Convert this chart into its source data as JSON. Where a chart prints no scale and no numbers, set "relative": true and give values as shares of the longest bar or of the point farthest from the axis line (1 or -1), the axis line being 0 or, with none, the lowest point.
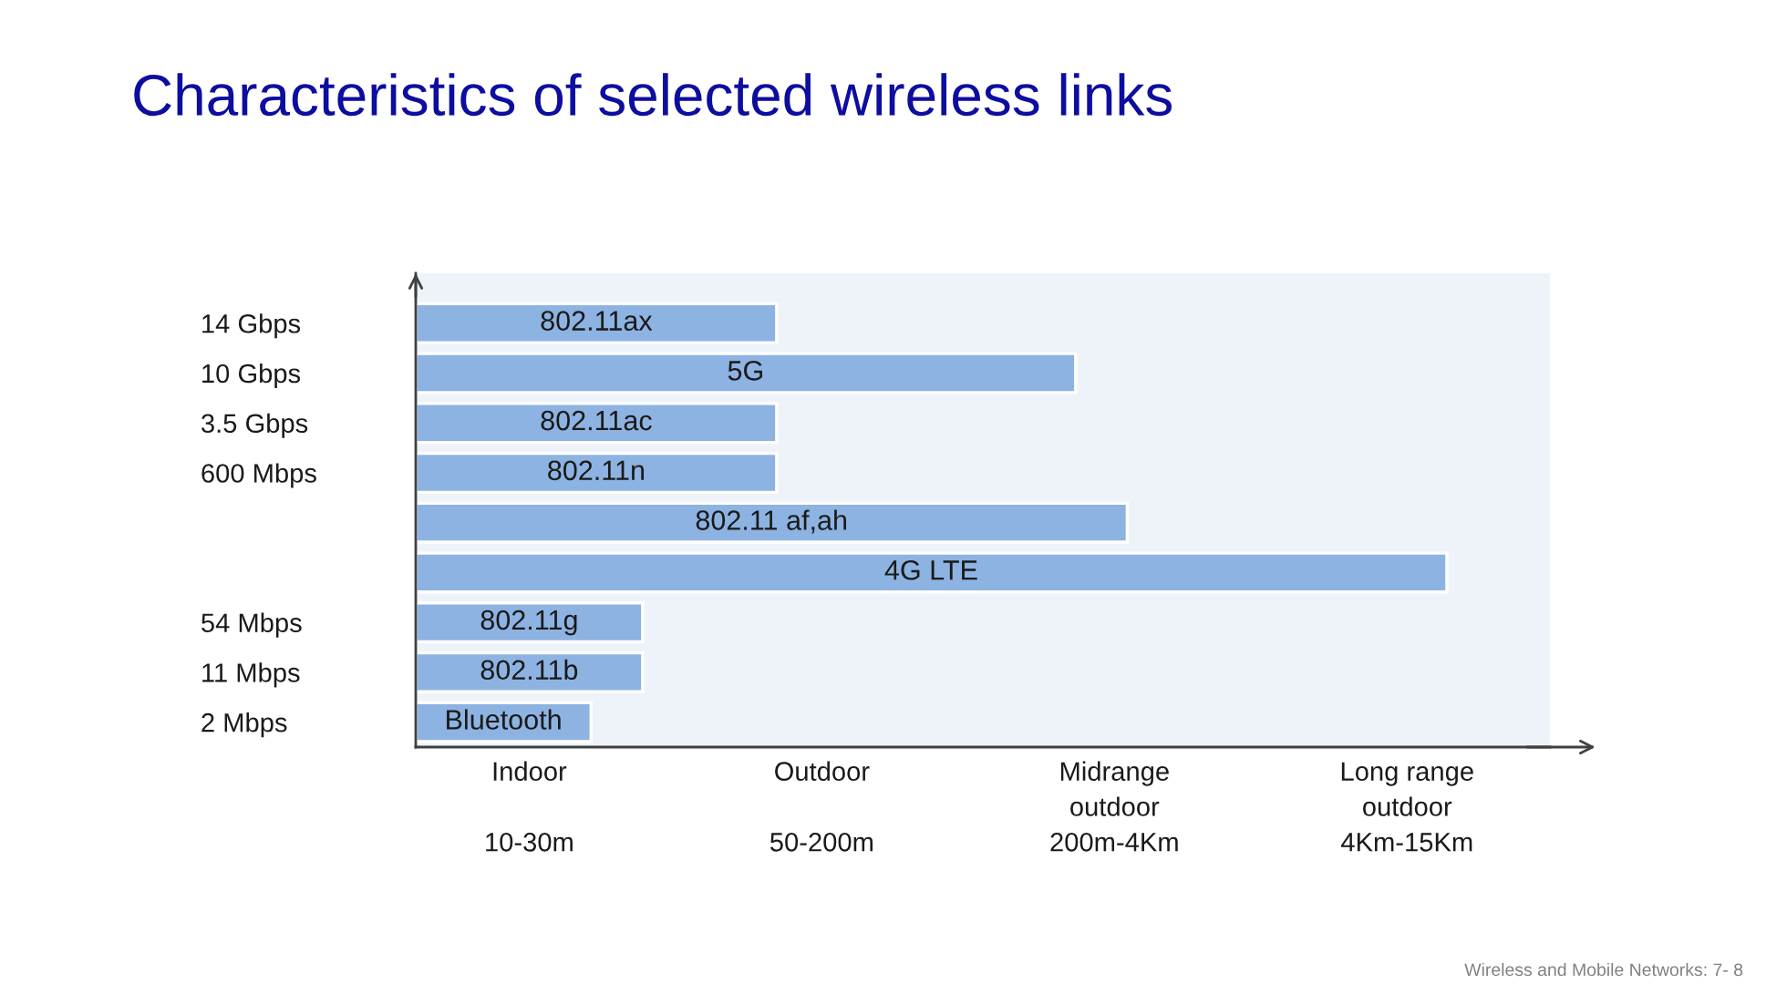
{
  "chart_data": {
    "type": "bar",
    "orientation": "horizontal",
    "relative": true,
    "title": "Characteristics of selected wireless links",
    "categories": [
      "14 Gbps",
      "10 Gbps",
      "3.5 Gbps",
      "600 Mbps",
      null,
      null,
      "54 Mbps",
      "11 Mbps",
      "2 Mbps"
    ],
    "series": [
      {
        "name": "802.11ax",
        "color": "#8db3e2",
        "values": [
          0.35,
          null,
          null,
          null,
          null,
          null,
          null,
          null,
          null
        ]
      },
      {
        "name": "5G",
        "color": "#8db3e2",
        "values": [
          null,
          0.64,
          null,
          null,
          null,
          null,
          null,
          null,
          null
        ]
      },
      {
        "name": "802.11ac",
        "color": "#8db3e2",
        "values": [
          null,
          null,
          0.35,
          null,
          null,
          null,
          null,
          null,
          null
        ]
      },
      {
        "name": "802.11n",
        "color": "#8db3e2",
        "values": [
          null,
          null,
          null,
          0.35,
          null,
          null,
          null,
          null,
          null
        ]
      },
      {
        "name": "802.11 af,ah",
        "color": "#8db3e2",
        "values": [
          null,
          null,
          null,
          null,
          0.69,
          null,
          null,
          null,
          null
        ]
      },
      {
        "name": "4G LTE",
        "color": "#8db3e2",
        "values": [
          null,
          null,
          null,
          null,
          null,
          1,
          null,
          null,
          null
        ]
      },
      {
        "name": "802.11g",
        "color": "#8db3e2",
        "values": [
          null,
          null,
          null,
          null,
          null,
          null,
          0.22,
          null,
          null
        ]
      },
      {
        "name": "802.11b",
        "color": "#8db3e2",
        "values": [
          null,
          null,
          null,
          null,
          null,
          null,
          null,
          0.22,
          null
        ]
      },
      {
        "name": "Bluetooth",
        "color": "#8db3e2",
        "values": [
          null,
          null,
          null,
          null,
          null,
          null,
          null,
          null,
          0.17
        ]
      }
    ],
    "annotations": [
      "Indoor\n\n10-30m",
      "Outdoor\n\n50-200m",
      "Midrange\noutdoor\n200m-4Km",
      "Long range\noutdoor\n4Km-15Km",
      "Wireless and Mobile Networks: 7- 8"
    ]
  }
}
